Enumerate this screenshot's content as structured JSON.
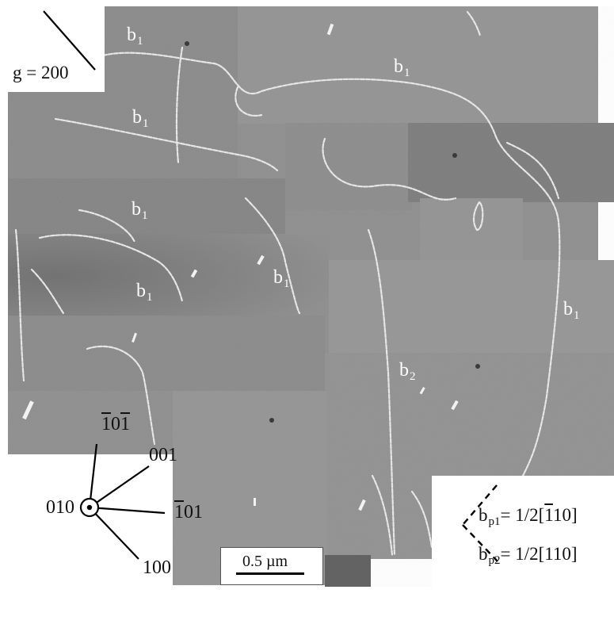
{
  "micrograph": {
    "burgers_labels": [
      {
        "base": "b",
        "sub": "1"
      },
      {
        "base": "b",
        "sub": "1"
      },
      {
        "base": "b",
        "sub": "1"
      },
      {
        "base": "b",
        "sub": "1"
      },
      {
        "base": "b",
        "sub": "1"
      },
      {
        "base": "b",
        "sub": "1"
      },
      {
        "base": "b",
        "sub": "1"
      },
      {
        "base": "b",
        "sub": "2"
      }
    ]
  },
  "g_vector": {
    "label": "g = 200"
  },
  "orientation": {
    "center": "010",
    "upper_left_bar": "1",
    "upper_left_mid": "0",
    "upper_left_end": "1",
    "upper_right": "001",
    "right_bar": "1",
    "right_rest": "01",
    "lower_right": "100"
  },
  "scale_bar": {
    "label": "0.5 µm"
  },
  "burgers_projections": [
    {
      "base": "b",
      "sub": "p1",
      "value_pre": "= 1/2[",
      "value_bar": "1",
      "value_post": "10]"
    },
    {
      "base": "b",
      "sub": "p2",
      "value_pre": "= 1/2[110]",
      "value_bar": "",
      "value_post": ""
    }
  ]
}
